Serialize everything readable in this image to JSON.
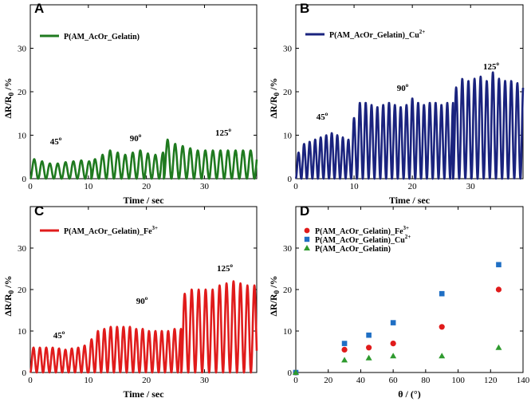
{
  "chart_data": [
    {
      "panel": "A",
      "type": "line",
      "title": "",
      "xlabel": "Time / sec",
      "ylabel": "ΔR/R0 /%",
      "xlim": [
        0,
        39
      ],
      "ylim": [
        0,
        40
      ],
      "xticks": [
        "0",
        "10",
        "20",
        "30"
      ],
      "yticks": [
        "0",
        "10",
        "20",
        "30"
      ],
      "color": "#1f7a1f",
      "legend": {
        "label": "P(AM_AcOr_Gelatin)",
        "superscript": ""
      },
      "annotations": [
        "45",
        "90",
        "125"
      ],
      "annotation_sup": "o",
      "segments": [
        {
          "start": 0,
          "end": 10.5,
          "period": 1.35,
          "peaks": [
            4.5,
            4.0,
            3.5,
            3.5,
            3.8,
            4.0,
            4.2,
            4.0
          ]
        },
        {
          "start": 10.5,
          "end": 23,
          "period": 1.3,
          "peaks": [
            4.5,
            5.5,
            6.5,
            6.0,
            5.5,
            6.0,
            6.5,
            5.8,
            5.5,
            6.0
          ]
        },
        {
          "start": 23,
          "end": 39,
          "period": 1.3,
          "peaks": [
            9.0,
            8.0,
            7.5,
            7.0,
            6.5,
            6.5,
            6.5,
            6.5,
            6.5,
            6.5,
            6.5,
            6.5,
            6.5
          ]
        }
      ]
    },
    {
      "panel": "B",
      "type": "line",
      "title": "",
      "xlabel": "Time / sec",
      "ylabel": "ΔR/R0 /%",
      "xlim": [
        0,
        39
      ],
      "ylim": [
        0,
        40
      ],
      "xticks": [
        "0",
        "10",
        "20",
        "30"
      ],
      "yticks": [
        "0",
        "10",
        "20",
        "30"
      ],
      "color": "#1a237e",
      "legend": {
        "label": "P(AM_AcOr_Gelatin)_Cu",
        "superscript": "2+"
      },
      "annotations": [
        "45",
        "90",
        "125"
      ],
      "annotation_sup": "o",
      "segments": [
        {
          "start": 0,
          "end": 9.5,
          "period": 0.95,
          "peaks": [
            6,
            8,
            8.5,
            9,
            9.5,
            10,
            10.5,
            10,
            9.5,
            9
          ]
        },
        {
          "start": 9.5,
          "end": 27,
          "period": 1.0,
          "peaks": [
            14,
            17.5,
            17.5,
            17,
            16.5,
            17,
            17.5,
            17,
            16.5,
            17,
            18.5,
            17.5,
            17,
            17.5,
            17.5,
            17,
            17.5
          ]
        },
        {
          "start": 27,
          "end": 39,
          "period": 1.05,
          "peaks": [
            21,
            23,
            22.5,
            23,
            23.5,
            22.5,
            24.5,
            23,
            22.5,
            22.5,
            22,
            22
          ]
        }
      ]
    },
    {
      "panel": "C",
      "type": "line",
      "title": "",
      "xlabel": "Time / sec",
      "ylabel": "ΔR/R0 /%",
      "xlim": [
        0,
        39
      ],
      "ylim": [
        0,
        40
      ],
      "xticks": [
        "0",
        "10",
        "20",
        "30"
      ],
      "yticks": [
        "0",
        "10",
        "20",
        "30"
      ],
      "color": "#e01b1b",
      "legend": {
        "label": "P(AM_AcOr_Gelatin)_Fe",
        "superscript": "3+"
      },
      "annotations": [
        "45",
        "90",
        "125"
      ],
      "annotation_sup": "o",
      "segments": [
        {
          "start": 0,
          "end": 10,
          "period": 1.1,
          "peaks": [
            6,
            6,
            6,
            6,
            5.8,
            5.5,
            5.8,
            6,
            6.5
          ]
        },
        {
          "start": 10,
          "end": 26,
          "period": 1.1,
          "peaks": [
            8,
            10,
            10.5,
            11,
            11,
            11,
            11,
            10.5,
            10.5,
            10,
            10,
            10,
            10,
            10.5
          ]
        },
        {
          "start": 26,
          "end": 39,
          "period": 1.2,
          "peaks": [
            19,
            20,
            20,
            20,
            20,
            21,
            21.5,
            22,
            21.5,
            21,
            21
          ]
        }
      ]
    },
    {
      "panel": "D",
      "type": "scatter",
      "title": "",
      "xlabel": "θ / (°)",
      "ylabel": "ΔR/R0 /%",
      "xlim": [
        0,
        140
      ],
      "ylim": [
        0,
        40
      ],
      "xticks": [
        "0",
        "20",
        "40",
        "60",
        "80",
        "100",
        "120",
        "140"
      ],
      "yticks": [
        "0",
        "10",
        "20",
        "30"
      ],
      "series": [
        {
          "name": "P(AM_AcOr_Gelatin)_Fe",
          "superscript": "3+",
          "marker": "circle",
          "color": "#e01b1b",
          "x": [
            0,
            30,
            45,
            60,
            90,
            125
          ],
          "y": [
            0,
            5.5,
            6,
            7,
            11,
            20
          ]
        },
        {
          "name": "P(AM_AcOr_Gelatin)_Cu",
          "superscript": "2+",
          "marker": "square",
          "color": "#1f6fc4",
          "x": [
            0,
            30,
            45,
            60,
            90,
            125
          ],
          "y": [
            0,
            7,
            9,
            12,
            19,
            26
          ]
        },
        {
          "name": "P(AM_AcOr_Gelatin)",
          "superscript": "",
          "marker": "triangle",
          "color": "#2e9a2e",
          "x": [
            0,
            30,
            45,
            60,
            90,
            125
          ],
          "y": [
            0,
            3,
            3.5,
            4,
            4,
            6
          ]
        }
      ]
    }
  ]
}
